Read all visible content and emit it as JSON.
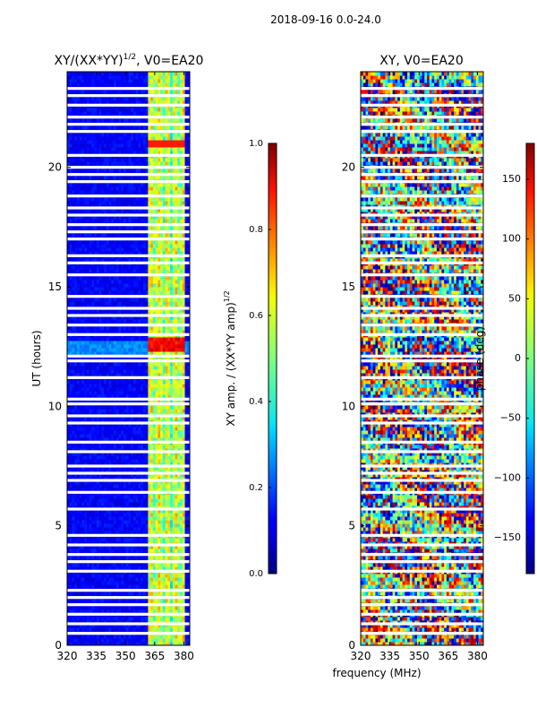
{
  "figure": {
    "suptitle": "2018-09-16 0.0-24.0",
    "xlabel": "frequency (MHz)"
  },
  "chart_data": [
    {
      "type": "heatmap",
      "title_main": "XY/(XX*YY)",
      "title_sup": "1/2",
      "title_tail": ", V0=EA20",
      "ylabel": "UT (hours)",
      "xlim": [
        320,
        383
      ],
      "ylim": [
        0,
        24
      ],
      "xticks": [
        "320",
        "335",
        "350",
        "365",
        "380"
      ],
      "yticks": [
        "0",
        "5",
        "10",
        "15",
        "20"
      ],
      "colormap": "jet",
      "colorbar": {
        "label_main": "XY amp. / (XX*YY amp)",
        "label_sup": "1/2",
        "range": [
          0.0,
          1.0
        ],
        "ticks": [
          "0.0",
          "0.2",
          "0.4",
          "0.6",
          "0.8",
          "1.0"
        ]
      },
      "signal_band_mhz": [
        361,
        380
      ],
      "flagged_hours": [
        0.5,
        0.9,
        1.3,
        1.7,
        2.0,
        2.3,
        3.1,
        3.5,
        3.8,
        4.2,
        4.6,
        5.7,
        6.4,
        6.9,
        7.2,
        7.5,
        8.1,
        8.5,
        9.3,
        9.6,
        10.1,
        10.3,
        11.2,
        11.9,
        12.1,
        13.0,
        13.4,
        13.8,
        14.1,
        14.6,
        15.5,
        16.0,
        16.3,
        17.0,
        17.3,
        17.6,
        18.0,
        18.3,
        18.8,
        19.4,
        19.7,
        20.0,
        20.5,
        21.5,
        21.8,
        22.1,
        22.6,
        23.0,
        23.3
      ]
    },
    {
      "type": "heatmap",
      "title": "XY, V0=EA20",
      "ylabel": "",
      "xlim": [
        320,
        383
      ],
      "ylim": [
        0,
        24
      ],
      "xticks": [
        "320",
        "335",
        "350",
        "365",
        "380"
      ],
      "yticks": [
        "0",
        "5",
        "10",
        "15",
        "20"
      ],
      "colormap": "jet",
      "colorbar": {
        "label": "phase (deg)",
        "range": [
          -180,
          180
        ],
        "ticks": [
          "−150",
          "−100",
          "−50",
          "0",
          "50",
          "100",
          "150"
        ]
      },
      "flagged_hours": [
        0.5,
        0.9,
        1.3,
        1.7,
        2.0,
        2.3,
        3.1,
        3.5,
        3.8,
        4.2,
        4.6,
        5.7,
        6.4,
        6.9,
        7.2,
        7.5,
        8.1,
        8.5,
        9.3,
        9.6,
        10.1,
        10.3,
        11.2,
        11.9,
        12.1,
        13.0,
        13.4,
        13.8,
        14.1,
        14.6,
        15.5,
        16.0,
        16.3,
        17.0,
        17.3,
        17.6,
        18.0,
        18.3,
        18.8,
        19.4,
        19.7,
        20.0,
        20.5,
        21.5,
        21.8,
        22.1,
        22.6,
        23.0,
        23.3
      ]
    }
  ]
}
